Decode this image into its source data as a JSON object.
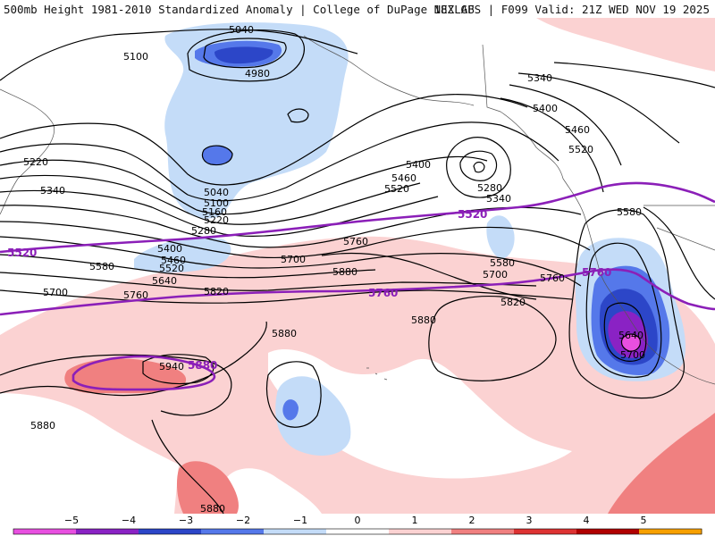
{
  "header": {
    "left": "500mb Height 1981-2010 Standardized Anomaly | College of DuPage NEXLAB",
    "right": "18Z GFS | F099 Valid: 21Z WED NOV 19 2025"
  },
  "colors": {
    "anom_-5": "#e84fe0",
    "anom_-4": "#8a22c4",
    "anom_-3": "#2c46c8",
    "anom_-2": "#5578ea",
    "anom_-1": "#c4dcf8",
    "anom_0": "#ffffff",
    "anom_1": "#fbd2d2",
    "anom_2": "#f08080",
    "anom_3": "#dd3232",
    "anom_4": "#b00000",
    "anom_5": "#f7a000",
    "height_contour": "#000000",
    "reference_contour": "#8b1fb8"
  },
  "colorbar": {
    "ticks": [
      "−5",
      "−4",
      "−3",
      "−2",
      "−1",
      "0",
      "1",
      "2",
      "3",
      "4",
      "5"
    ]
  },
  "contour_labels": {
    "l5040a": "5040",
    "l5100a": "5100",
    "l4980": "4980",
    "l5040b": "5040",
    "l5100b": "5100",
    "l5160": "5160",
    "l5220a": "5220",
    "l5280a": "5280",
    "l5220b": "5220",
    "l5340a": "5340",
    "l5400a": "5400",
    "l5460a": "5460",
    "l5520a": "5520",
    "l5580a": "5580",
    "l5640a": "5640",
    "l5700a": "5700",
    "l5760a": "5760",
    "l5820a": "5820",
    "l5880a": "5880",
    "l5700b": "5700",
    "l5760b": "5760",
    "l5880b": "5880",
    "l5940": "5940",
    "l5880c": "5880",
    "l5880d": "5880",
    "l5880e": "5880",
    "l5400b": "5400",
    "l5460b": "5460",
    "l5520b": "5520",
    "l5280b": "5280",
    "l5340b": "5340",
    "l5580b": "5580",
    "l5700c": "5700",
    "l5820b": "5820",
    "l5760c": "5760",
    "l5340c": "5340",
    "l5400c": "5400",
    "l5460c": "5460",
    "l5520c": "5520",
    "l5580c": "5580",
    "l5640b": "5640",
    "l5700d": "5700"
  },
  "reference_labels": {
    "p5520a": "5520",
    "p5520b": "5520",
    "p5760a": "5760",
    "p5760b": "5760",
    "p5880": "5880"
  }
}
